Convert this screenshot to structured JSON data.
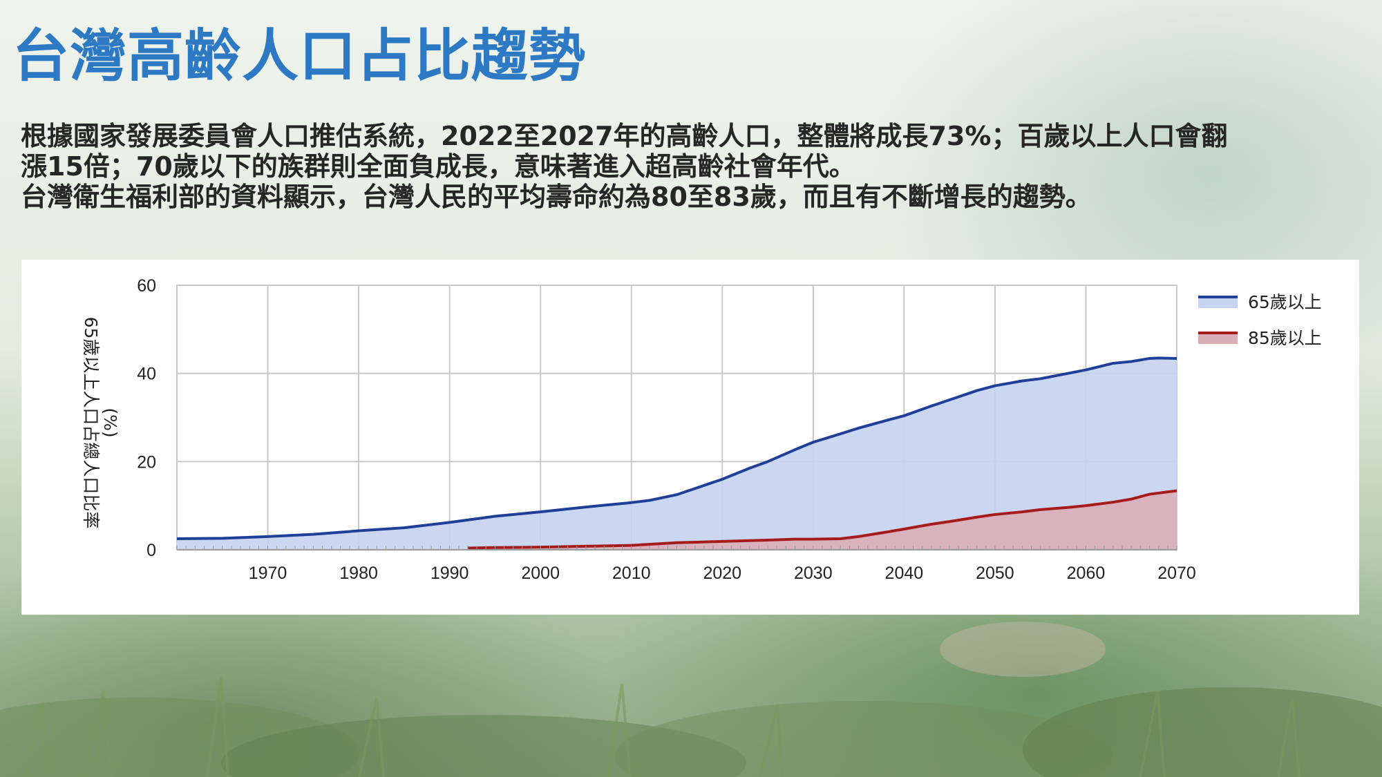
{
  "slide": {
    "title": "台灣高齡人口占比趨勢",
    "paragraph_lines": [
      "根據國家發展委員會人口推估系統，2022至2027年的高齡人口，整體將成長73%；百歲以上人口會翻",
      "漲15倍；70歲以下的族群則全面負成長，意味著進入超高齡社會年代。",
      "台灣衛生福利部的資料顯示，台灣人民的平均壽命約為80至83歲，而且有不斷增長的趨勢。"
    ]
  },
  "chart_data": {
    "type": "area",
    "ylabel_lines": [
      "65歲以上人口占總人口比率",
      "(%)"
    ],
    "xlim": [
      1960,
      2070
    ],
    "ylim": [
      0,
      60
    ],
    "x_ticks": [
      1970,
      1980,
      1990,
      2000,
      2010,
      2020,
      2030,
      2040,
      2050,
      2060,
      2070
    ],
    "y_ticks": [
      0,
      20,
      40,
      60
    ],
    "grid": true,
    "legend_position": "right",
    "series": [
      {
        "name": "65歲以上",
        "line_color": "#1f3f99",
        "fill_color": "#c5d3ee",
        "x": [
          1960,
          1965,
          1970,
          1975,
          1980,
          1985,
          1990,
          1995,
          2000,
          2005,
          2010,
          2012,
          2015,
          2018,
          2020,
          2023,
          2025,
          2028,
          2030,
          2033,
          2035,
          2038,
          2040,
          2043,
          2045,
          2048,
          2050,
          2053,
          2055,
          2058,
          2060,
          2063,
          2065,
          2067,
          2068,
          2070
        ],
        "y": [
          2.5,
          2.6,
          3.0,
          3.5,
          4.3,
          5.0,
          6.2,
          7.6,
          8.6,
          9.7,
          10.7,
          11.2,
          12.5,
          14.6,
          16.0,
          18.5,
          20.0,
          22.7,
          24.4,
          26.3,
          27.6,
          29.3,
          30.4,
          32.6,
          34.0,
          36.1,
          37.2,
          38.3,
          38.8,
          40.0,
          40.8,
          42.3,
          42.7,
          43.4,
          43.5,
          43.4
        ]
      },
      {
        "name": "85歲以上",
        "line_color": "#a61c1c",
        "fill_color": "#d9aeb7",
        "x": [
          1992,
          1995,
          2000,
          2005,
          2010,
          2015,
          2020,
          2025,
          2028,
          2030,
          2033,
          2035,
          2038,
          2040,
          2043,
          2045,
          2048,
          2050,
          2053,
          2055,
          2058,
          2060,
          2063,
          2065,
          2067,
          2070
        ],
        "y": [
          0.4,
          0.5,
          0.6,
          0.8,
          1.0,
          1.6,
          1.9,
          2.2,
          2.4,
          2.4,
          2.5,
          3.0,
          4.0,
          4.7,
          5.8,
          6.4,
          7.4,
          8.0,
          8.6,
          9.1,
          9.6,
          10.0,
          10.8,
          11.5,
          12.6,
          13.4
        ]
      }
    ]
  }
}
